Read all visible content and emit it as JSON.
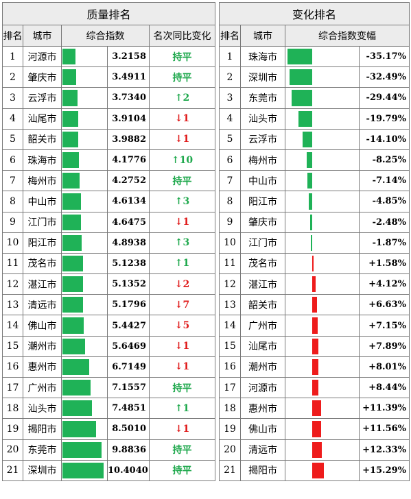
{
  "left": {
    "title": "质量排名",
    "headers": [
      "排名",
      "城市",
      "综合指数",
      "名次同比变化"
    ],
    "rows": [
      {
        "rank": "1",
        "city": "河源市",
        "index": 3.2158,
        "index_text": "3.2158",
        "change": "持平",
        "dir": "flat"
      },
      {
        "rank": "2",
        "city": "肇庆市",
        "index": 3.4911,
        "index_text": "3.4911",
        "change": "持平",
        "dir": "flat"
      },
      {
        "rank": "3",
        "city": "云浮市",
        "index": 3.734,
        "index_text": "3.7340",
        "change": "↑2",
        "dir": "up"
      },
      {
        "rank": "4",
        "city": "汕尾市",
        "index": 3.9104,
        "index_text": "3.9104",
        "change": "↓1",
        "dir": "down"
      },
      {
        "rank": "5",
        "city": "韶关市",
        "index": 3.9882,
        "index_text": "3.9882",
        "change": "↓1",
        "dir": "down"
      },
      {
        "rank": "6",
        "city": "珠海市",
        "index": 4.1776,
        "index_text": "4.1776",
        "change": "↑10",
        "dir": "up"
      },
      {
        "rank": "7",
        "city": "梅州市",
        "index": 4.2752,
        "index_text": "4.2752",
        "change": "持平",
        "dir": "flat"
      },
      {
        "rank": "8",
        "city": "中山市",
        "index": 4.6134,
        "index_text": "4.6134",
        "change": "↑3",
        "dir": "up"
      },
      {
        "rank": "9",
        "city": "江门市",
        "index": 4.6475,
        "index_text": "4.6475",
        "change": "↓1",
        "dir": "down"
      },
      {
        "rank": "10",
        "city": "阳江市",
        "index": 4.8938,
        "index_text": "4.8938",
        "change": "↑3",
        "dir": "up"
      },
      {
        "rank": "11",
        "city": "茂名市",
        "index": 5.1238,
        "index_text": "5.1238",
        "change": "↑1",
        "dir": "up"
      },
      {
        "rank": "12",
        "city": "湛江市",
        "index": 5.1352,
        "index_text": "5.1352",
        "change": "↓2",
        "dir": "down"
      },
      {
        "rank": "13",
        "city": "清远市",
        "index": 5.1796,
        "index_text": "5.1796",
        "change": "↓7",
        "dir": "down"
      },
      {
        "rank": "14",
        "city": "佛山市",
        "index": 5.4427,
        "index_text": "5.4427",
        "change": "↓5",
        "dir": "down"
      },
      {
        "rank": "15",
        "city": "潮州市",
        "index": 5.6469,
        "index_text": "5.6469",
        "change": "↓1",
        "dir": "down"
      },
      {
        "rank": "16",
        "city": "惠州市",
        "index": 6.7149,
        "index_text": "6.7149",
        "change": "↓1",
        "dir": "down"
      },
      {
        "rank": "17",
        "city": "广州市",
        "index": 7.1557,
        "index_text": "7.1557",
        "change": "持平",
        "dir": "flat"
      },
      {
        "rank": "18",
        "city": "汕头市",
        "index": 7.4851,
        "index_text": "7.4851",
        "change": "↑1",
        "dir": "up"
      },
      {
        "rank": "19",
        "city": "揭阳市",
        "index": 8.501,
        "index_text": "8.5010",
        "change": "↓1",
        "dir": "down"
      },
      {
        "rank": "20",
        "city": "东莞市",
        "index": 9.8836,
        "index_text": "9.8836",
        "change": "持平",
        "dir": "flat"
      },
      {
        "rank": "21",
        "city": "深圳市",
        "index": 10.404,
        "index_text": "10.4040",
        "change": "持平",
        "dir": "flat"
      }
    ]
  },
  "right": {
    "title": "变化排名",
    "headers": [
      "排名",
      "城市",
      "综合指数变幅"
    ],
    "rows": [
      {
        "rank": "1",
        "city": "珠海市",
        "pct": -35.17,
        "pct_text": "-35.17%"
      },
      {
        "rank": "2",
        "city": "深圳市",
        "pct": -32.49,
        "pct_text": "-32.49%"
      },
      {
        "rank": "3",
        "city": "东莞市",
        "pct": -29.44,
        "pct_text": "-29.44%"
      },
      {
        "rank": "4",
        "city": "汕头市",
        "pct": -19.79,
        "pct_text": "-19.79%"
      },
      {
        "rank": "5",
        "city": "云浮市",
        "pct": -14.1,
        "pct_text": "-14.10%"
      },
      {
        "rank": "6",
        "city": "梅州市",
        "pct": -8.25,
        "pct_text": "-8.25%"
      },
      {
        "rank": "7",
        "city": "中山市",
        "pct": -7.14,
        "pct_text": "-7.14%"
      },
      {
        "rank": "8",
        "city": "阳江市",
        "pct": -4.85,
        "pct_text": "-4.85%"
      },
      {
        "rank": "9",
        "city": "肇庆市",
        "pct": -2.48,
        "pct_text": "-2.48%"
      },
      {
        "rank": "10",
        "city": "江门市",
        "pct": -1.87,
        "pct_text": "-1.87%"
      },
      {
        "rank": "11",
        "city": "茂名市",
        "pct": 1.58,
        "pct_text": "+1.58%"
      },
      {
        "rank": "12",
        "city": "湛江市",
        "pct": 4.12,
        "pct_text": "+4.12%"
      },
      {
        "rank": "13",
        "city": "韶关市",
        "pct": 6.63,
        "pct_text": "+6.63%"
      },
      {
        "rank": "14",
        "city": "广州市",
        "pct": 7.15,
        "pct_text": "+7.15%"
      },
      {
        "rank": "15",
        "city": "汕尾市",
        "pct": 7.89,
        "pct_text": "+7.89%"
      },
      {
        "rank": "16",
        "city": "潮州市",
        "pct": 8.01,
        "pct_text": "+8.01%"
      },
      {
        "rank": "17",
        "city": "河源市",
        "pct": 8.44,
        "pct_text": "+8.44%"
      },
      {
        "rank": "18",
        "city": "惠州市",
        "pct": 11.39,
        "pct_text": "+11.39%"
      },
      {
        "rank": "19",
        "city": "佛山市",
        "pct": 11.56,
        "pct_text": "+11.56%"
      },
      {
        "rank": "20",
        "city": "清远市",
        "pct": 12.33,
        "pct_text": "+12.33%"
      },
      {
        "rank": "21",
        "city": "揭阳市",
        "pct": 15.29,
        "pct_text": "+15.29%"
      }
    ]
  },
  "colors": {
    "bar_green": "#1fb257",
    "bar_red": "#ee1c1c",
    "up_green": "#1ea84c",
    "down_red": "#e01b1b",
    "header_bg": "#ececec"
  }
}
